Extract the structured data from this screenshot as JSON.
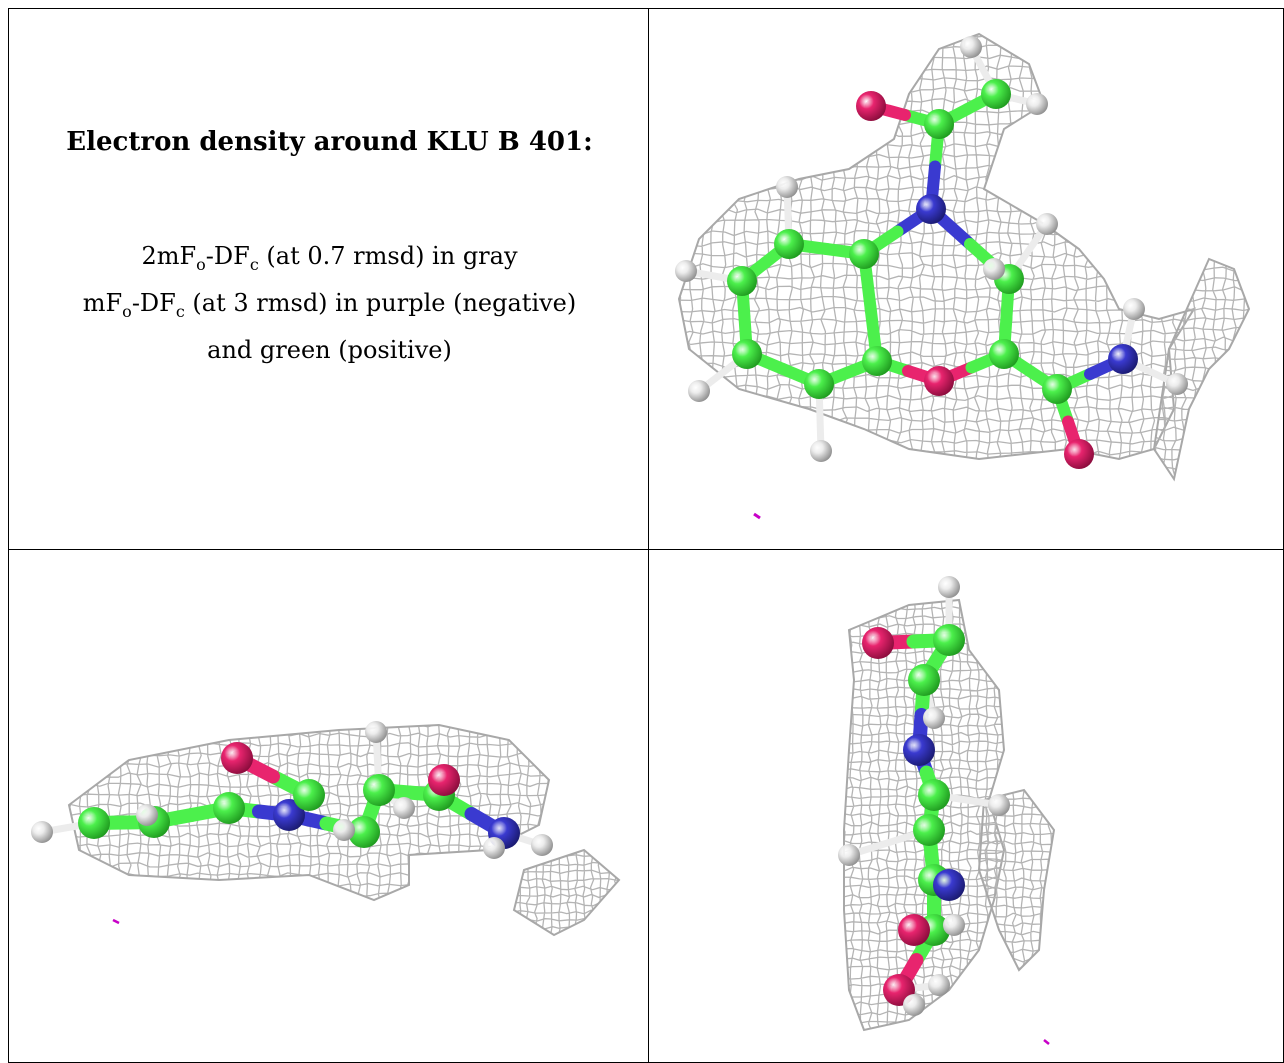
{
  "title": "Electron density around KLU B 401:",
  "legend": {
    "line1": {
      "prefix": "2mF",
      "sub_o": "o",
      "mid": "-DF",
      "sub_c": "c",
      "suffix": " (at 0.7 rmsd) in gray"
    },
    "line2": {
      "prefix": "mF",
      "sub_o": "o",
      "mid": "-DF",
      "sub_c": "c",
      "suffix": " (at 3 rmsd) in purple (negative)"
    },
    "line3": "and green (positive)"
  },
  "views": [
    "top",
    "side",
    "edge"
  ],
  "colors": {
    "mesh": "#b4b4b4",
    "carbon": "#4cf04c",
    "nitrogen": "#3a3ad0",
    "oxygen": "#e8246e",
    "hydrogen": "#ececec",
    "difference_negative": "#c800c8"
  }
}
